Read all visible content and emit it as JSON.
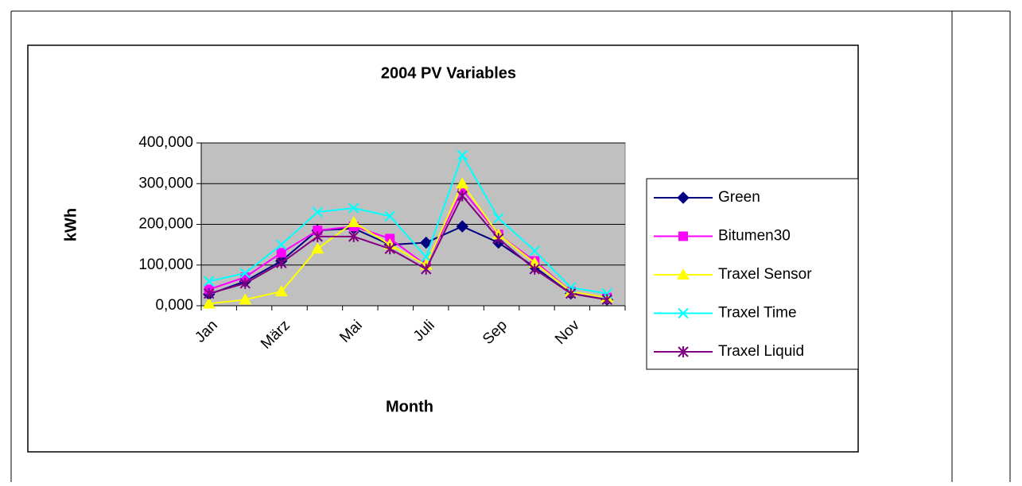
{
  "chart_data": {
    "type": "line",
    "title": "2004 PV Variables",
    "x_label": "Month",
    "y_label": "kWh",
    "categories": [
      "Jan",
      null,
      "März",
      null,
      "Mai",
      null,
      "Juli",
      null,
      "Sep",
      null,
      "Nov",
      null
    ],
    "series": [
      {
        "name": "Green",
        "color": "#000080",
        "marker": "diamond",
        "values": [
          28,
          60,
          110,
          185,
          190,
          150,
          155,
          195,
          155,
          95,
          30,
          15
        ]
      },
      {
        "name": "Bitumen30",
        "color": "#ff00ff",
        "marker": "square",
        "values": [
          40,
          70,
          130,
          185,
          195,
          165,
          100,
          285,
          175,
          110,
          35,
          20
        ]
      },
      {
        "name": "Traxel Sensor",
        "color": "#ffff00",
        "marker": "triangle",
        "values": [
          5,
          15,
          35,
          140,
          205,
          150,
          100,
          300,
          175,
          105,
          35,
          20
        ]
      },
      {
        "name": "Traxel Time",
        "color": "#00ffff",
        "marker": "x",
        "values": [
          60,
          80,
          150,
          230,
          240,
          220,
          120,
          370,
          215,
          135,
          45,
          30
        ]
      },
      {
        "name": "Traxel Liquid",
        "color": "#800080",
        "marker": "star",
        "values": [
          30,
          55,
          105,
          170,
          170,
          140,
          90,
          270,
          165,
          90,
          30,
          15
        ]
      }
    ],
    "ylim": [
      0,
      400
    ],
    "yticks": [
      {
        "value": 0,
        "label": "0,000"
      },
      {
        "value": 100,
        "label": "100,000"
      },
      {
        "value": 200,
        "label": "200,000"
      },
      {
        "value": 300,
        "label": "300,000"
      },
      {
        "value": 400,
        "label": "400,000"
      }
    ],
    "grid": true,
    "legend": "right"
  }
}
